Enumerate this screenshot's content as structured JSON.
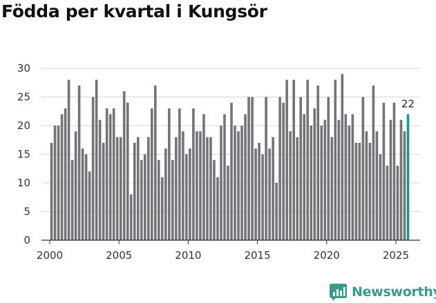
{
  "title": "Födda per kvartal i Kungsör",
  "brand": {
    "name": "Newsworthy",
    "logo_icon": "newsworthy-chart-logo-icon",
    "color": "#3a9a8c"
  },
  "chart_data": {
    "type": "bar",
    "title": "Födda per kvartal i Kungsör",
    "xlabel": "",
    "ylabel": "",
    "ylim": [
      0,
      30
    ],
    "yticks": [
      0,
      5,
      10,
      15,
      20,
      25,
      30
    ],
    "xticks": [
      2000,
      2005,
      2010,
      2015,
      2020,
      2025
    ],
    "xlim": [
      1999.4,
      2026.75
    ],
    "grid": true,
    "legend": "none",
    "bar_color": "#747378",
    "highlight_color": "#139b8f",
    "first_period": "2000 Q1",
    "last_period": "2025 Q4",
    "highlight_label": "22",
    "values": [
      17,
      20,
      20,
      22,
      23,
      28,
      14,
      19,
      27,
      16,
      15,
      12,
      25,
      28,
      21,
      17,
      23,
      22,
      23,
      18,
      18,
      26,
      24,
      8,
      17,
      18,
      14,
      15,
      18,
      23,
      27,
      14,
      11,
      16,
      23,
      14,
      18,
      23,
      19,
      15,
      16,
      23,
      19,
      19,
      22,
      18,
      18,
      14,
      11,
      20,
      22,
      13,
      24,
      20,
      19,
      20,
      22,
      25,
      25,
      16,
      17,
      15,
      25,
      16,
      18,
      10,
      25,
      24,
      28,
      19,
      28,
      18,
      25,
      22,
      28,
      20,
      23,
      27,
      20,
      21,
      25,
      18,
      28,
      21,
      29,
      22,
      20,
      22,
      17,
      17,
      25,
      19,
      17,
      27,
      19,
      15,
      24,
      13,
      21,
      24,
      13,
      21,
      19,
      22
    ]
  }
}
